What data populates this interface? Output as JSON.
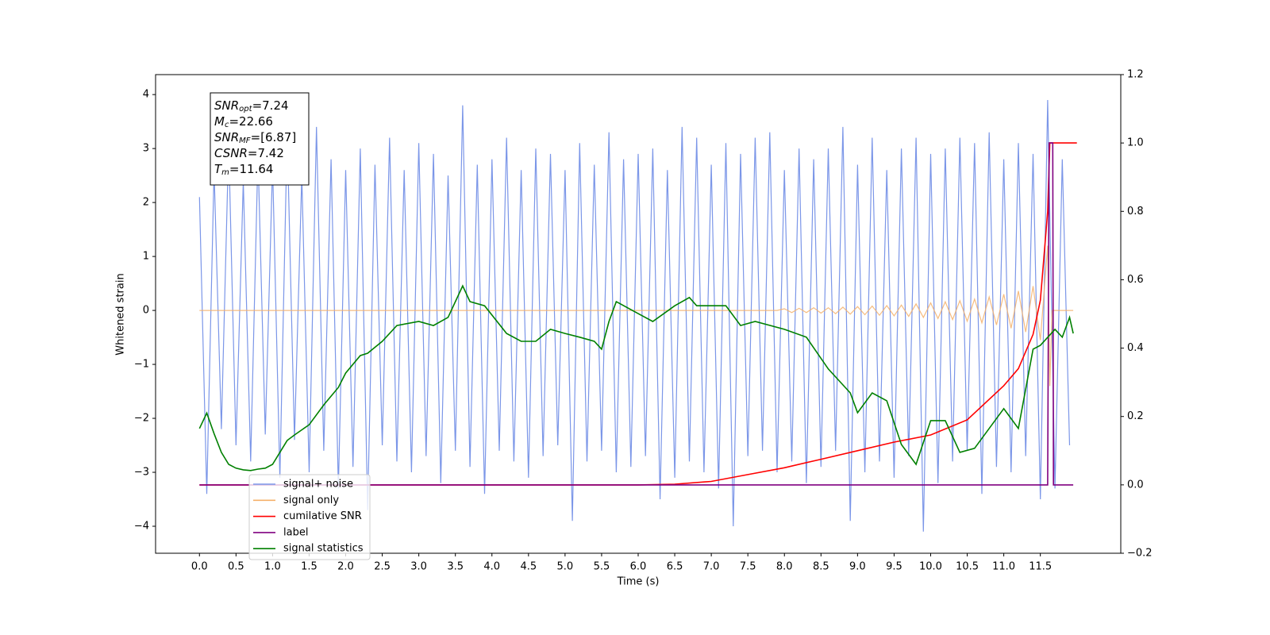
{
  "chart_data": {
    "type": "line",
    "xlabel": "Time (s)",
    "ylabel": "Whitened strain",
    "xlim": [
      -0.6,
      12.6
    ],
    "ylim": [
      -4.5,
      4.37
    ],
    "y2lim": [
      -0.2,
      1.2
    ],
    "xticks": [
      {
        "value": 0,
        "label": "0.0"
      },
      0.5,
      {
        "value": 1,
        "label": "1.0"
      },
      1.5,
      {
        "value": 2,
        "label": "2.0"
      },
      2.5,
      {
        "value": 3,
        "label": "3.0"
      },
      3.5,
      {
        "value": 4,
        "label": "4.0"
      },
      4.5,
      {
        "value": 5,
        "label": "5.0"
      },
      5.5,
      {
        "value": 6,
        "label": "6.0"
      },
      6.5,
      {
        "value": 7,
        "label": "7.0"
      },
      7.5,
      {
        "value": 8,
        "label": "8.0"
      },
      8.5,
      {
        "value": 9,
        "label": "9.0"
      },
      9.5,
      {
        "value": 10,
        "label": "10.0"
      },
      10.5,
      {
        "value": 11,
        "label": "11.0"
      },
      11.5
    ],
    "yticks": [
      {
        "value": -4,
        "label": "−4"
      },
      {
        "value": -3,
        "label": "−3"
      },
      {
        "value": -2,
        "label": "−2"
      },
      {
        "value": -1,
        "label": "−1"
      },
      0,
      1,
      2,
      3,
      4
    ],
    "y2ticks": [
      {
        "value": -0.2,
        "label": "−0.2"
      },
      {
        "value": 0,
        "label": "0.0"
      },
      0.2,
      0.4,
      0.6,
      0.8,
      {
        "value": 1,
        "label": "1.0"
      },
      {
        "value": 1.2,
        "label": "1.2"
      }
    ],
    "legend_loc": "lower left",
    "annotations": [
      {
        "base": "SNR",
        "sub": "opt",
        "rest": "=7.24"
      },
      {
        "base": "M",
        "sub": "c",
        "rest": "=22.66"
      },
      {
        "base": "SNR",
        "sub": "MF",
        "rest": "=[6.87]"
      },
      {
        "base": "CSNR",
        "sub": null,
        "rest": "=7.42"
      },
      {
        "base": "T",
        "sub": "m",
        "rest": "=11.64"
      }
    ],
    "series": [
      {
        "name": "signal+ noise",
        "color": "#7b96e8",
        "x": [
          0.0,
          0.1,
          0.2,
          0.3,
          0.4,
          0.5,
          0.6,
          0.7,
          0.8,
          0.9,
          1.0,
          1.1,
          1.2,
          1.3,
          1.4,
          1.5,
          1.6,
          1.7,
          1.8,
          1.9,
          2.0,
          2.1,
          2.2,
          2.3,
          2.4,
          2.5,
          2.6,
          2.7,
          2.8,
          2.9,
          3.0,
          3.1,
          3.2,
          3.3,
          3.4,
          3.5,
          3.6,
          3.7,
          3.8,
          3.9,
          4.0,
          4.1,
          4.2,
          4.3,
          4.4,
          4.5,
          4.6,
          4.7,
          4.8,
          4.9,
          5.0,
          5.1,
          5.2,
          5.3,
          5.4,
          5.5,
          5.6,
          5.7,
          5.8,
          5.9,
          6.0,
          6.1,
          6.2,
          6.3,
          6.4,
          6.5,
          6.6,
          6.7,
          6.8,
          6.9,
          7.0,
          7.1,
          7.2,
          7.3,
          7.4,
          7.5,
          7.6,
          7.7,
          7.8,
          7.9,
          8.0,
          8.1,
          8.2,
          8.3,
          8.4,
          8.5,
          8.6,
          8.7,
          8.8,
          8.9,
          9.0,
          9.1,
          9.2,
          9.3,
          9.4,
          9.5,
          9.6,
          9.7,
          9.8,
          9.9,
          10.0,
          10.1,
          10.2,
          10.3,
          10.4,
          10.5,
          10.6,
          10.7,
          10.8,
          10.9,
          11.0,
          11.1,
          11.2,
          11.3,
          11.4,
          11.5,
          11.6,
          11.7,
          11.8,
          11.9
        ],
        "values": [
          2.1,
          -3.4,
          2.6,
          -2.2,
          3.1,
          -2.5,
          2.4,
          -2.8,
          2.9,
          -2.3,
          2.7,
          -3.1,
          3.3,
          -2.4,
          2.5,
          -3.0,
          3.4,
          -2.6,
          2.8,
          -3.3,
          2.6,
          -2.9,
          3.0,
          -3.7,
          2.7,
          -2.5,
          3.2,
          -2.8,
          2.6,
          -3.0,
          3.1,
          -2.7,
          2.9,
          -3.2,
          2.5,
          -2.6,
          3.8,
          -2.9,
          2.7,
          -3.4,
          2.8,
          -2.6,
          3.2,
          -2.8,
          2.6,
          -3.1,
          3.0,
          -2.7,
          2.9,
          -2.5,
          2.6,
          -3.9,
          3.1,
          -2.8,
          2.7,
          -2.6,
          3.3,
          -3.0,
          2.8,
          -2.9,
          2.9,
          -2.7,
          3.0,
          -3.5,
          2.6,
          -3.1,
          3.4,
          -2.8,
          3.2,
          -3.0,
          2.7,
          -3.3,
          3.1,
          -4.0,
          2.9,
          -2.7,
          3.2,
          -2.6,
          3.3,
          -3.0,
          2.6,
          -2.8,
          3.0,
          -3.2,
          2.8,
          -2.9,
          3.0,
          -2.6,
          3.4,
          -3.9,
          2.7,
          -3.0,
          3.2,
          -2.8,
          2.6,
          -3.1,
          3.0,
          -2.7,
          3.2,
          -4.1,
          2.9,
          -3.2,
          3.0,
          -2.8,
          3.2,
          -2.6,
          3.1,
          -3.4,
          3.3,
          -2.9,
          2.8,
          -3.0,
          3.1,
          -2.7,
          2.9,
          -3.5,
          3.9,
          -3.3,
          2.8,
          -2.5
        ]
      },
      {
        "name": "signal only",
        "color": "#f5b06a",
        "x": [
          0,
          7.9,
          8.0,
          8.1,
          8.2,
          8.3,
          8.4,
          8.5,
          8.6,
          8.7,
          8.8,
          8.9,
          9.0,
          9.1,
          9.2,
          9.3,
          9.4,
          9.5,
          9.6,
          9.7,
          9.8,
          9.9,
          10.0,
          10.1,
          10.2,
          10.3,
          10.4,
          10.5,
          10.6,
          10.7,
          10.8,
          10.9,
          11.0,
          11.1,
          11.2,
          11.3,
          11.4,
          11.5,
          11.6,
          11.63,
          11.66,
          11.95
        ],
        "values": [
          0,
          0,
          0.03,
          -0.04,
          0.04,
          -0.04,
          0.05,
          -0.05,
          0.05,
          -0.06,
          0.06,
          -0.07,
          0.07,
          -0.08,
          0.08,
          -0.09,
          0.09,
          -0.1,
          0.1,
          -0.11,
          0.12,
          -0.13,
          0.14,
          -0.15,
          0.16,
          -0.17,
          0.18,
          -0.2,
          0.21,
          -0.23,
          0.25,
          -0.27,
          0.3,
          -0.33,
          0.36,
          -0.4,
          0.45,
          -0.55,
          1.2,
          -1.4,
          0,
          0
        ]
      },
      {
        "name": "cumilative SNR",
        "color": "#ff0000",
        "axis": "y2",
        "x": [
          0,
          6,
          6.5,
          7,
          7.5,
          8,
          8.5,
          9,
          9.5,
          10,
          10.5,
          11,
          11.2,
          11.4,
          11.5,
          11.6,
          11.63,
          11.64,
          12.0
        ],
        "values": [
          0,
          0,
          0.002,
          0.01,
          0.03,
          0.05,
          0.075,
          0.1,
          0.125,
          0.146,
          0.19,
          0.29,
          0.34,
          0.44,
          0.54,
          0.8,
          1.0,
          1.0,
          1.0
        ]
      },
      {
        "name": "label",
        "color": "#800080",
        "axis": "y2",
        "x": [
          0,
          11.6,
          11.62,
          11.67,
          11.68,
          11.95
        ],
        "values": [
          0,
          0,
          1.0,
          1.0,
          0,
          0
        ]
      },
      {
        "name": "signal statistics",
        "color": "#008000",
        "axis": "y2",
        "x": [
          0,
          0.1,
          0.2,
          0.3,
          0.4,
          0.5,
          0.6,
          0.7,
          0.8,
          0.9,
          1.0,
          1.1,
          1.2,
          1.3,
          1.5,
          1.7,
          1.9,
          2.0,
          2.2,
          2.3,
          2.5,
          2.7,
          3.0,
          3.2,
          3.4,
          3.5,
          3.6,
          3.7,
          3.9,
          4.2,
          4.4,
          4.6,
          4.8,
          5.0,
          5.2,
          5.4,
          5.5,
          5.6,
          5.7,
          6.0,
          6.2,
          6.5,
          6.7,
          6.8,
          7.0,
          7.2,
          7.4,
          7.6,
          8.0,
          8.3,
          8.6,
          8.9,
          9.0,
          9.2,
          9.4,
          9.6,
          9.8,
          10.0,
          10.2,
          10.4,
          10.6,
          10.8,
          11.0,
          11.2,
          11.4,
          11.5,
          11.7,
          11.8,
          11.9,
          11.95
        ],
        "values": [
          0.165,
          0.21,
          0.15,
          0.095,
          0.06,
          0.049,
          0.044,
          0.042,
          0.046,
          0.049,
          0.06,
          0.095,
          0.13,
          0.146,
          0.176,
          0.234,
          0.285,
          0.327,
          0.378,
          0.385,
          0.42,
          0.466,
          0.478,
          0.466,
          0.49,
          0.536,
          0.582,
          0.536,
          0.524,
          0.443,
          0.42,
          0.42,
          0.455,
          0.443,
          0.432,
          0.42,
          0.397,
          0.478,
          0.536,
          0.501,
          0.478,
          0.524,
          0.548,
          0.524,
          0.524,
          0.524,
          0.466,
          0.478,
          0.455,
          0.432,
          0.339,
          0.269,
          0.211,
          0.269,
          0.246,
          0.118,
          0.06,
          0.188,
          0.188,
          0.095,
          0.107,
          0.165,
          0.223,
          0.165,
          0.397,
          0.408,
          0.455,
          0.432,
          0.49,
          0.443
        ]
      }
    ]
  }
}
